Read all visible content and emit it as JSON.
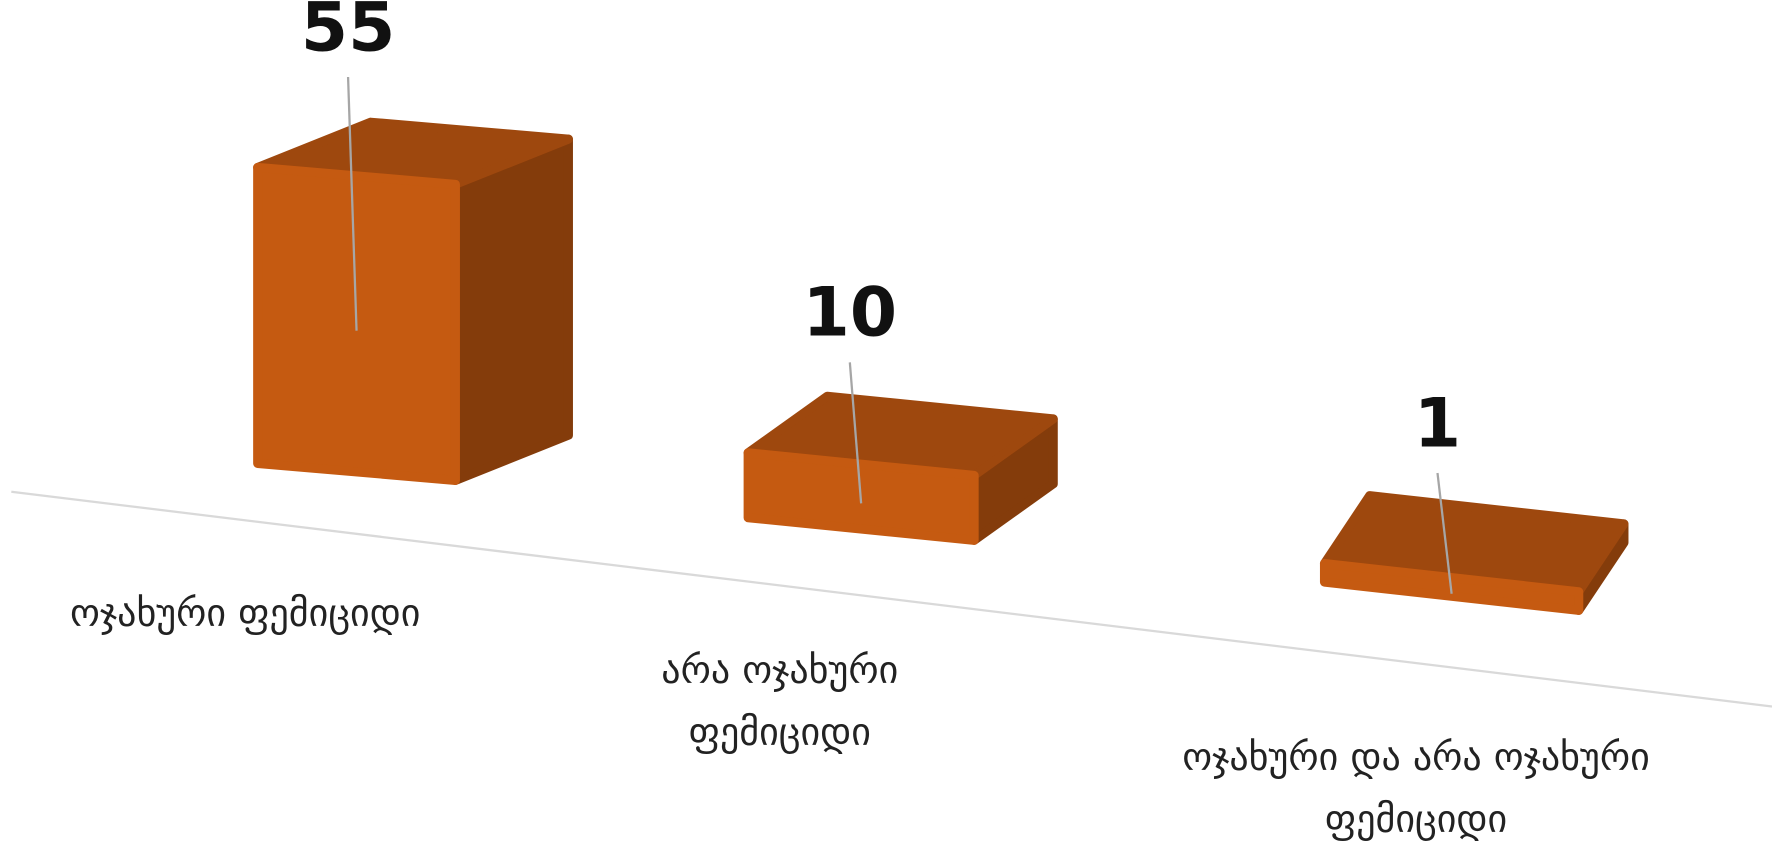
{
  "chart_data": {
    "type": "bar",
    "categories": [
      "ოჯახური ფემიციდი",
      "არა ოჯახური ფემიციდი",
      "ოჯახური და არა ოჯახური ფემიციდი"
    ],
    "values": [
      55,
      10,
      1
    ],
    "color": "#c55a11"
  }
}
